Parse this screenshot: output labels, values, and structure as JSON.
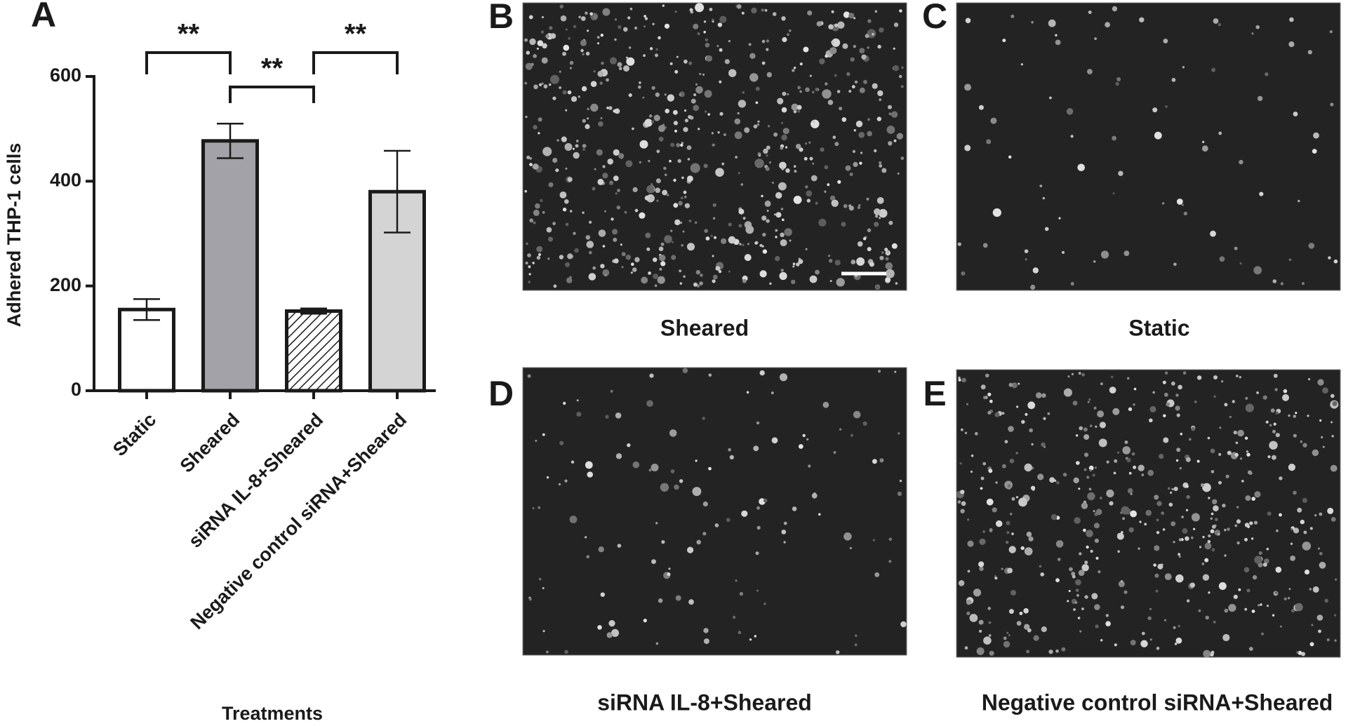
{
  "chart_data": {
    "type": "bar",
    "panel_label": "A",
    "ylabel": "Adhered THP-1 cells",
    "xlabel": "Treatments",
    "categories": [
      "Static",
      "Sheared",
      "siRNA IL-8+Sheared",
      "Negative control siRNA+Sheared"
    ],
    "values": [
      155,
      477,
      152,
      380
    ],
    "errors": [
      20,
      33,
      5,
      78
    ],
    "colors": [
      "#ffffff",
      "#a2a2a8",
      "#ffffff",
      "#d4d4d4"
    ],
    "hatch": [
      false,
      false,
      true,
      false
    ],
    "ylim": [
      0,
      600
    ],
    "yticks": [
      0,
      200,
      400,
      600
    ],
    "significance": [
      {
        "pair": [
          0,
          1
        ],
        "label": "**"
      },
      {
        "pair": [
          1,
          2
        ],
        "label": "**"
      },
      {
        "pair": [
          2,
          3
        ],
        "label": "**"
      }
    ]
  },
  "micrographs": [
    {
      "label": "B",
      "caption": "Sheared"
    },
    {
      "label": "C",
      "caption": "Static"
    },
    {
      "label": "D",
      "caption": "siRNA IL-8+Sheared"
    },
    {
      "label": "E",
      "caption": "Negative control siRNA+Sheared"
    }
  ]
}
